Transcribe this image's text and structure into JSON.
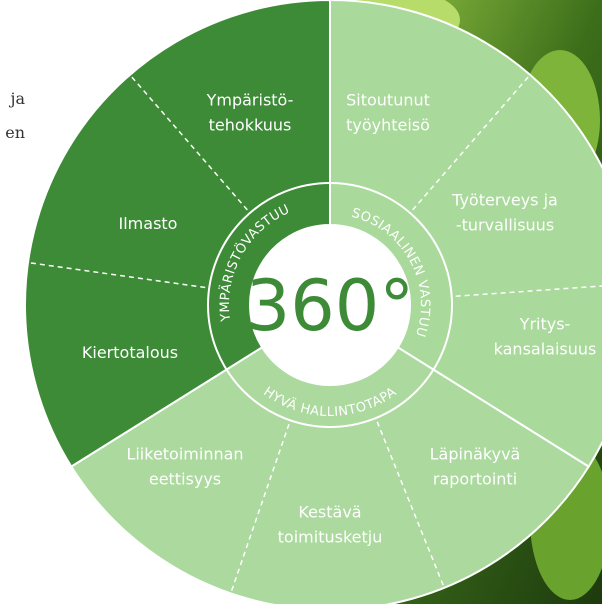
{
  "side_text": [
    "ja",
    "en"
  ],
  "center": "360°",
  "sections": [
    {
      "title": "YMPÄRISTÖVASTUU",
      "items": [
        [
          "Ympäristö-",
          "tehokkuus"
        ],
        [
          "Ilmasto"
        ],
        [
          "Kiertotalous"
        ]
      ]
    },
    {
      "title": "SOSIAALINEN VASTUU",
      "items": [
        [
          "Sitoutunut",
          "työyhteisö"
        ],
        [
          "Työterveys ja",
          "-turvallisuus"
        ],
        [
          "Yritys-",
          "kansalaisuus"
        ]
      ]
    },
    {
      "title": "HYVÄ HALLINTOTAPA",
      "items": [
        [
          "Läpinäkyvä",
          "raportointi"
        ],
        [
          "Kestävä",
          "toimitusketju"
        ],
        [
          "Liiketoiminnan",
          "eettisyys"
        ]
      ]
    }
  ]
}
